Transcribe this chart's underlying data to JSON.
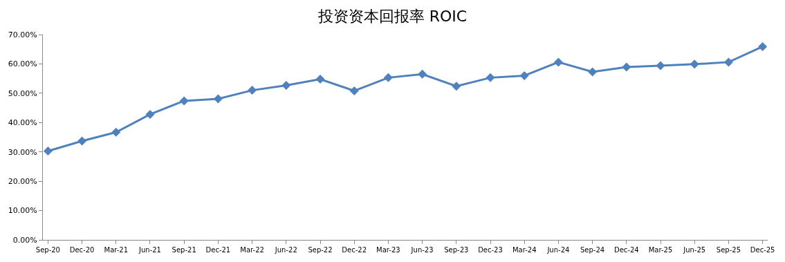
{
  "chart_data": {
    "type": "line",
    "title": "投资资本回报率 ROIC",
    "categories": [
      "Sep-20",
      "Dec-20",
      "Mar-21",
      "Jun-21",
      "Sep-21",
      "Dec-21",
      "Mar-22",
      "Jun-22",
      "Sep-22",
      "Dec-22",
      "Mar-23",
      "Jun-23",
      "Sep-23",
      "Dec-23",
      "Mar-24",
      "Jun-24",
      "Sep-24",
      "Dec-24",
      "Mar-25",
      "Jun-25",
      "Sep-25",
      "Dec-25"
    ],
    "series": [
      {
        "color": "#4f81bd",
        "values": [
          30.3,
          33.7,
          36.7,
          42.8,
          47.4,
          48.1,
          51.0,
          52.7,
          54.8,
          50.8,
          55.3,
          56.5,
          52.4,
          55.3,
          56.0,
          60.6,
          57.3,
          58.9,
          59.4,
          59.9,
          60.6,
          65.9
        ]
      }
    ],
    "ylim": [
      0,
      70
    ],
    "yticks": [
      {
        "value": 0,
        "label": "0.00%"
      },
      {
        "value": 10,
        "label": "10.00%"
      },
      {
        "value": 20,
        "label": "20.00%"
      },
      {
        "value": 30,
        "label": "30.00%"
      },
      {
        "value": 40,
        "label": "40.00%"
      },
      {
        "value": 50,
        "label": "50.00%"
      },
      {
        "value": 60,
        "label": "60.00%"
      },
      {
        "value": 70,
        "label": "70.00%"
      }
    ],
    "marker": "diamond",
    "line_style": "solid"
  }
}
